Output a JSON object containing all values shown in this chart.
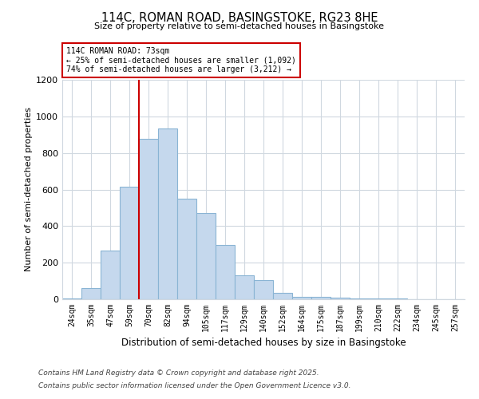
{
  "title1": "114C, ROMAN ROAD, BASINGSTOKE, RG23 8HE",
  "title2": "Size of property relative to semi-detached houses in Basingstoke",
  "xlabel": "Distribution of semi-detached houses by size in Basingstoke",
  "ylabel": "Number of semi-detached properties",
  "categories": [
    "24sqm",
    "35sqm",
    "47sqm",
    "59sqm",
    "70sqm",
    "82sqm",
    "94sqm",
    "105sqm",
    "117sqm",
    "129sqm",
    "140sqm",
    "152sqm",
    "164sqm",
    "175sqm",
    "187sqm",
    "199sqm",
    "210sqm",
    "222sqm",
    "234sqm",
    "245sqm",
    "257sqm"
  ],
  "values": [
    5,
    60,
    265,
    615,
    875,
    935,
    550,
    470,
    295,
    130,
    105,
    35,
    15,
    15,
    10,
    5,
    5,
    3,
    0,
    2,
    0
  ],
  "bar_color": "#c5d8ed",
  "bar_edge_color": "#8ab4d4",
  "grid_color": "#d0d8e0",
  "red_line_x": 4.0,
  "property_value": "73sqm",
  "smaller_pct": "25%",
  "smaller_n": "1,092",
  "larger_pct": "74%",
  "larger_n": "3,212",
  "annotation_box_facecolor": "#ffffff",
  "annotation_border_color": "#cc0000",
  "red_line_color": "#cc0000",
  "ylim": [
    0,
    1200
  ],
  "yticks": [
    0,
    200,
    400,
    600,
    800,
    1000,
    1200
  ],
  "footer1": "Contains HM Land Registry data © Crown copyright and database right 2025.",
  "footer2": "Contains public sector information licensed under the Open Government Licence v3.0.",
  "background_color": "#ffffff"
}
